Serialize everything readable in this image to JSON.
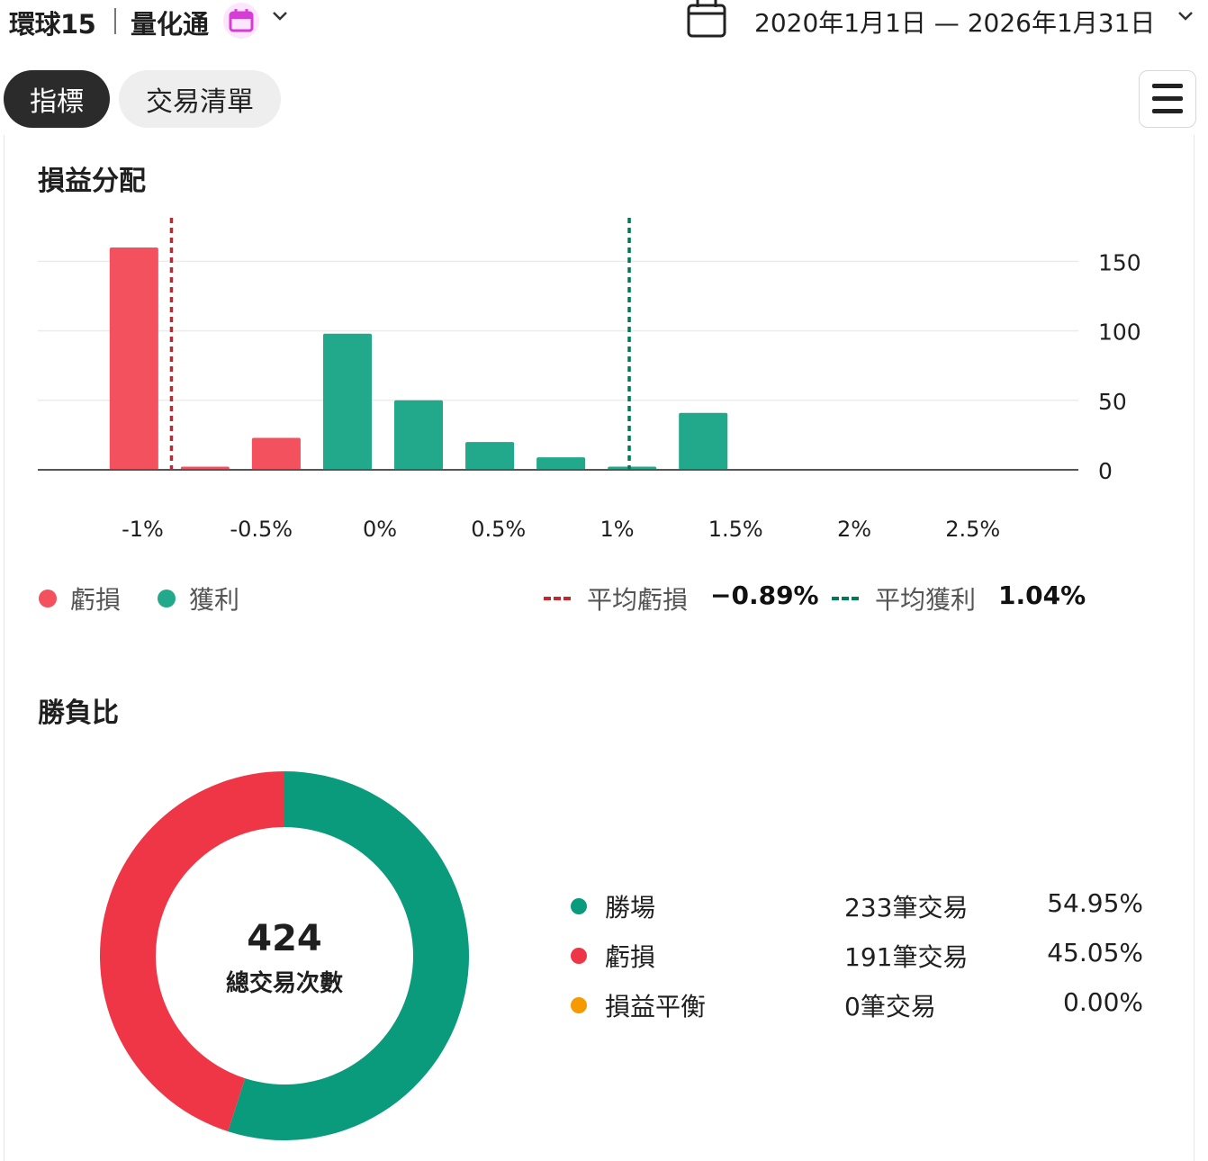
{
  "header": {
    "app_name": "環球15",
    "strategy_name": "量化通",
    "date_range": "2020年1月1日 — 2026年1月31日"
  },
  "tabs": [
    {
      "label": "指標",
      "active": true
    },
    {
      "label": "交易清單",
      "active": false
    }
  ],
  "colors": {
    "loss": "#f4515f",
    "profit": "#22a98b",
    "loss_donut": "#ef3646",
    "win_donut": "#0a9a7c",
    "breakeven": "#f59a00",
    "avg_loss_line": "#c1272d",
    "avg_profit_line": "#007a55"
  },
  "pnl_section": {
    "title": "損益分配",
    "legend": {
      "loss": "虧損",
      "profit": "獲利",
      "avg_loss_label": "平均虧損",
      "avg_loss_value": "−0.89%",
      "avg_profit_label": "平均獲利",
      "avg_profit_value": "1.04%"
    }
  },
  "chart_data": {
    "type": "bar",
    "title": "損益分配",
    "x_tick_labels": [
      "-1%",
      "-0.5%",
      "0%",
      "0.5%",
      "1%",
      "1.5%",
      "2%",
      "2.5%"
    ],
    "x_tick_values": [
      -1,
      -0.5,
      0,
      0.5,
      1,
      1.5,
      2,
      2.5
    ],
    "y_tick_labels": [
      "0",
      "50",
      "100",
      "150"
    ],
    "ylim": [
      0,
      160
    ],
    "bars": [
      {
        "x_start": -1.2,
        "x_end": -0.9,
        "value": 160,
        "type": "loss"
      },
      {
        "x_start": -0.9,
        "x_end": -0.6,
        "value": 2,
        "type": "loss"
      },
      {
        "x_start": -0.6,
        "x_end": -0.3,
        "value": 23,
        "type": "loss"
      },
      {
        "x_start": -0.3,
        "x_end": 0.0,
        "value": 98,
        "type": "profit"
      },
      {
        "x_start": 0.0,
        "x_end": 0.3,
        "value": 50,
        "type": "profit"
      },
      {
        "x_start": 0.3,
        "x_end": 0.6,
        "value": 20,
        "type": "profit"
      },
      {
        "x_start": 0.6,
        "x_end": 0.9,
        "value": 9,
        "type": "profit"
      },
      {
        "x_start": 0.9,
        "x_end": 1.2,
        "value": 2,
        "type": "profit"
      },
      {
        "x_start": 1.2,
        "x_end": 1.5,
        "value": 41,
        "type": "profit"
      }
    ],
    "avg_loss_x": -0.89,
    "avg_profit_x": 1.04,
    "grid": true,
    "y_axis_position": "right",
    "legend_position": "bottom"
  },
  "winloss_section": {
    "title": "勝負比",
    "total_count": "424",
    "total_label": "總交易次數",
    "donut": [
      {
        "name": "勝場",
        "value": 233,
        "color_key": "win_donut"
      },
      {
        "name": "虧損",
        "value": 191,
        "color_key": "loss_donut"
      }
    ],
    "rows": [
      {
        "label": "勝場",
        "count": "233筆交易",
        "pct": "54.95%",
        "color": "#0a9a7c"
      },
      {
        "label": "虧損",
        "count": "191筆交易",
        "pct": "45.05%",
        "color": "#ef3646"
      },
      {
        "label": "損益平衡",
        "count": "0筆交易",
        "pct": "0.00%",
        "color": "#f59a00"
      }
    ]
  }
}
